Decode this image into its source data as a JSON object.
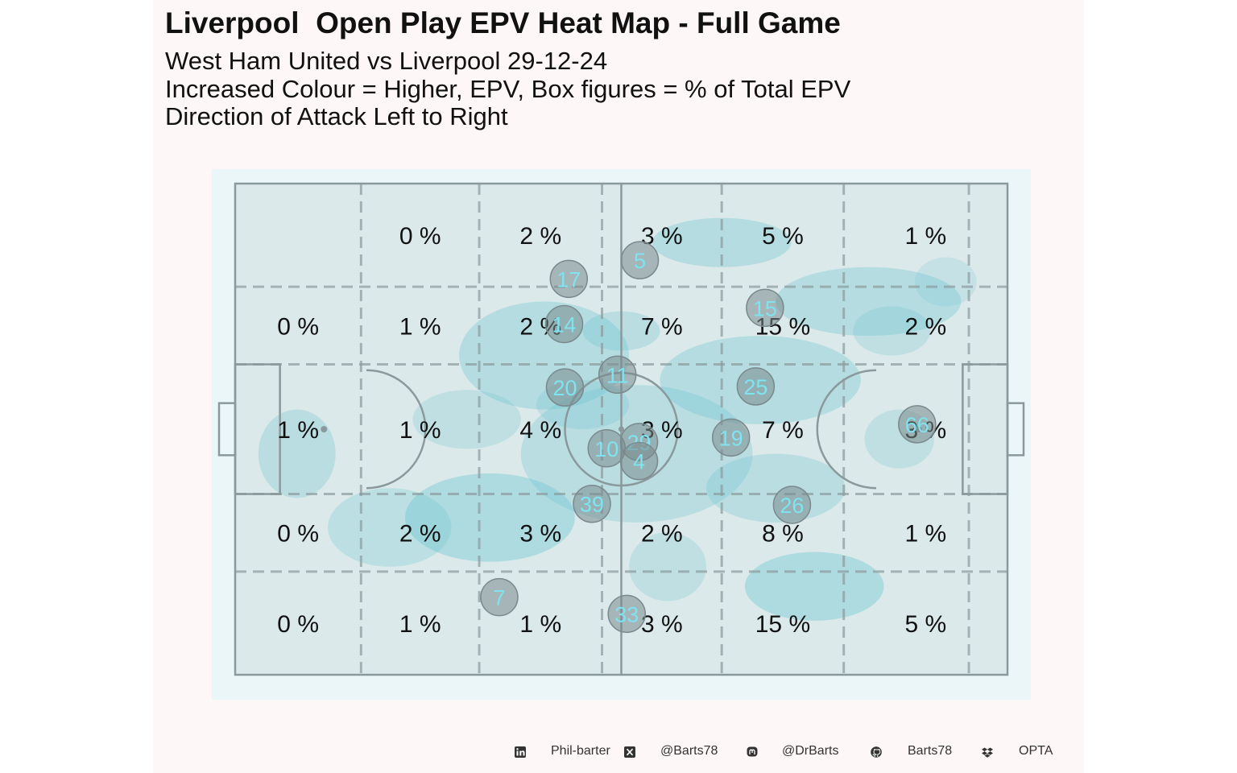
{
  "header": {
    "title": "Liverpool  Open Play EPV Heat Map - Full Game",
    "subtitle_1": "West Ham United vs Liverpool 29-12-24",
    "subtitle_2": "Increased Colour = Higher, EPV, Box figures = % of Total EPV",
    "subtitle_3": "Direction of Attack Left to Right"
  },
  "chart_data": {
    "type": "heatmap",
    "title": "Liverpool  Open Play EPV Heat Map - Full Game",
    "x_range": [
      0,
      100
    ],
    "y_range": [
      0,
      100
    ],
    "zone_columns_x": [
      0,
      16.3,
      31.6,
      47.5,
      63,
      78.8,
      95,
      100
    ],
    "zone_rows_y": [
      0,
      21,
      36.8,
      63.2,
      79,
      100
    ],
    "zone_values": [
      [
        "",
        "0 %",
        "2 %",
        "3 %",
        "5 %",
        "1 %"
      ],
      [
        "0 %",
        "1 %",
        "2 %",
        "7 %",
        "15 %",
        "2 %"
      ],
      [
        "1 %",
        "1 %",
        "4 %",
        "3 %",
        "7 %",
        "3 %"
      ],
      [
        "0 %",
        "2 %",
        "3 %",
        "2 %",
        "8 %",
        "1 %"
      ],
      [
        "0 %",
        "1 %",
        "1 %",
        "3 %",
        "15 %",
        "5 %"
      ]
    ],
    "player_positions": [
      {
        "number": "5",
        "x": 52.4,
        "y": 15.6
      },
      {
        "number": "17",
        "x": 43.2,
        "y": 19.4
      },
      {
        "number": "14",
        "x": 42.6,
        "y": 28.6
      },
      {
        "number": "15",
        "x": 68.6,
        "y": 25.3
      },
      {
        "number": "11",
        "x": 49.5,
        "y": 38.9
      },
      {
        "number": "20",
        "x": 42.7,
        "y": 41.5
      },
      {
        "number": "25",
        "x": 67.4,
        "y": 41.3
      },
      {
        "number": "10",
        "x": 48.1,
        "y": 53.9
      },
      {
        "number": "29",
        "x": 52.3,
        "y": 52.6
      },
      {
        "number": "4",
        "x": 52.3,
        "y": 56.5
      },
      {
        "number": "19",
        "x": 64.2,
        "y": 51.7
      },
      {
        "number": "66",
        "x": 88.3,
        "y": 49.0
      },
      {
        "number": "39",
        "x": 46.2,
        "y": 65.2
      },
      {
        "number": "26",
        "x": 72.1,
        "y": 65.4
      },
      {
        "number": "7",
        "x": 34.2,
        "y": 84.2
      },
      {
        "number": "33",
        "x": 50.7,
        "y": 87.6
      }
    ],
    "attack_direction": "left-to-right",
    "legend": "none",
    "grid": "zone grid, dashed"
  },
  "colors": {
    "panel_bg": "#fdf7f7",
    "pitch_bg": "#ebf6f8",
    "zone_fill": "#dbe9ea",
    "line_color": "#8a9a9c",
    "density_color": "#6cc5d1",
    "player_circle": "#7a8a8d",
    "player_text": "#7fe3f0"
  },
  "footer": {
    "linkedin_icon": "linkedin-icon",
    "linkedin": "Phil-barter",
    "x_icon": "x-twitter-icon",
    "x_handle": "@Barts78",
    "mastodon_icon": "mastodon-icon",
    "mastodon": "@DrBarts",
    "github_icon": "github-icon",
    "github": "Barts78",
    "dropbox_icon": "dropbox-icon",
    "source": "OPTA"
  }
}
